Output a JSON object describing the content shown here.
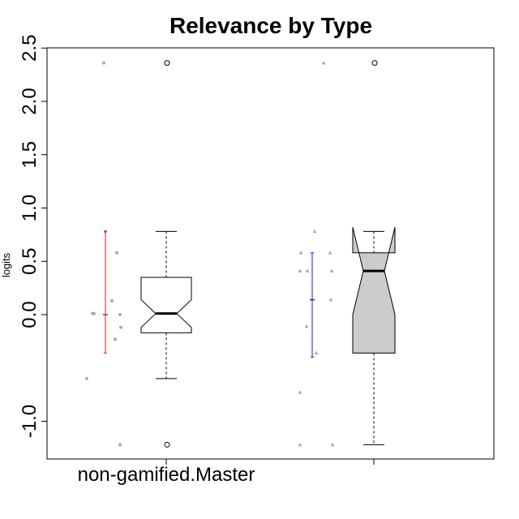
{
  "chart_data": {
    "type": "box",
    "title": "Relevance by Type",
    "xlabel": "",
    "ylabel": "logits",
    "ylim": [
      -1.35,
      2.5
    ],
    "y_ticks": [
      2.5,
      2.0,
      1.5,
      1.0,
      0.5,
      0.0,
      -1.0
    ],
    "y_tick_labels": [
      "2.5",
      "2.0",
      "1.5",
      "1.0",
      "0.5",
      "0.0",
      "-1.0"
    ],
    "categories": [
      "non-gamified.Master",
      ""
    ],
    "grid": false,
    "legend": "none",
    "colors": {
      "box_group1": "#ffffff",
      "box_group2": "#cccccc",
      "errorbar_group1": "#e31a1c",
      "errorbar_group2": "#1f1fbf",
      "points": "#aaaaaa"
    },
    "groups": [
      {
        "category": "non-gamified.Master",
        "box": {
          "whisker_low": -0.6,
          "q1": -0.17,
          "median": 0.01,
          "q3": 0.35,
          "whisker_high": 0.78,
          "notch_low": -0.12,
          "notch_high": 0.14,
          "outliers": [
            2.36,
            -1.22
          ]
        },
        "errorbar": {
          "mean": 0.0,
          "low": -0.36,
          "high": 0.78
        },
        "points": {
          "marker": "circle",
          "values": [
            2.36,
            0.78,
            0.58,
            0.13,
            0.01,
            0.01,
            0.0,
            -0.12,
            -0.23,
            -0.6,
            -1.22
          ]
        }
      },
      {
        "category": "",
        "box": {
          "whisker_low": -1.22,
          "q1": -0.36,
          "median": 0.41,
          "q3": 0.58,
          "whisker_high": 0.78,
          "notch_low": 0.0,
          "notch_high": 0.82,
          "outliers": [
            2.36
          ]
        },
        "errorbar": {
          "mean": 0.14,
          "low": -0.4,
          "high": 0.58
        },
        "points": {
          "marker": "triangle",
          "values": [
            2.36,
            0.78,
            0.58,
            0.58,
            0.41,
            0.41,
            0.41,
            0.14,
            -0.11,
            -0.36,
            -0.73,
            -1.22,
            -1.22
          ]
        }
      }
    ]
  }
}
